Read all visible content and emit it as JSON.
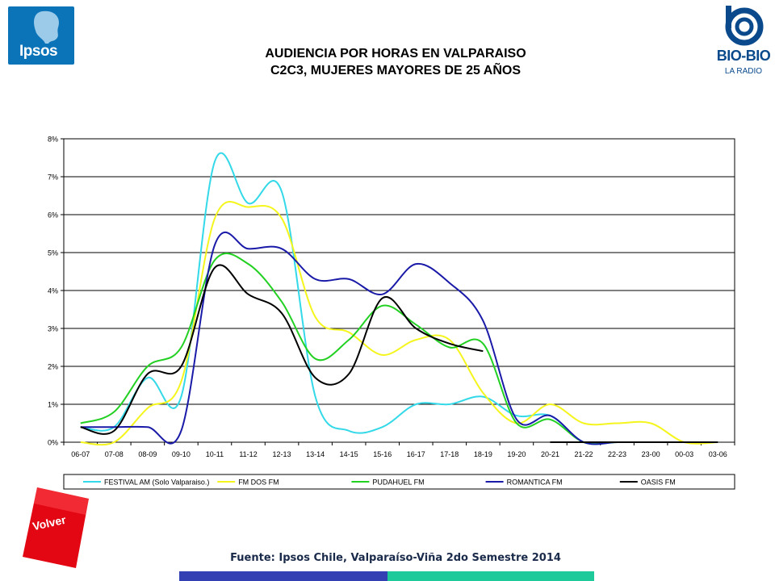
{
  "title_line1": "AUDIENCIA POR HORAS EN VALPARAISO",
  "title_line2": "C2C3, MUJERES MAYORES DE 25 AÑOS",
  "logo_left": "Ipsos",
  "logo_right": "BIO-BIO",
  "logo_right_sub": "LA RADIO",
  "button_label": "Volver",
  "source": "Fuente: Ipsos Chile, Valparaíso-Viña 2do Semestre 2014",
  "colors": {
    "accent_blue": "#3340b4",
    "accent_green": "#1ec99a",
    "button_red": "#e30613",
    "ipsos_blue": "#0b74b9"
  },
  "chart_data": {
    "type": "line",
    "categories": [
      "06-07",
      "07-08",
      "08-09",
      "09-10",
      "10-11",
      "11-12",
      "12-13",
      "13-14",
      "14-15",
      "15-16",
      "16-17",
      "17-18",
      "18-19",
      "19-20",
      "20-21",
      "21-22",
      "22-23",
      "23-00",
      "00-03",
      "03-06"
    ],
    "ylim": [
      0,
      8
    ],
    "yticks": [
      "0%",
      "1%",
      "2%",
      "3%",
      "4%",
      "5%",
      "6%",
      "7%",
      "8%"
    ],
    "grid": true,
    "legend_position": "bottom",
    "series": [
      {
        "name": "FESTIVAL AM (Solo Valparaiso.)",
        "color": "#33d9e8",
        "values": [
          0.4,
          0.4,
          1.7,
          1.2,
          7.4,
          6.3,
          6.6,
          1.2,
          0.3,
          0.4,
          1.0,
          1.0,
          1.2,
          0.7,
          0.7,
          0.0,
          0.0,
          0.0,
          0.0,
          0.0
        ]
      },
      {
        "name": "FM DOS FM",
        "color": "#f5f51e",
        "values": [
          0.0,
          0.0,
          0.9,
          1.6,
          5.9,
          6.2,
          5.9,
          3.3,
          2.9,
          2.3,
          2.7,
          2.7,
          1.3,
          0.5,
          1.0,
          0.5,
          0.5,
          0.5,
          0.0,
          0.0
        ]
      },
      {
        "name": "PUDAHUEL FM",
        "color": "#22d022",
        "values": [
          0.5,
          0.8,
          2.0,
          2.5,
          4.8,
          4.7,
          3.7,
          2.2,
          2.7,
          3.6,
          3.1,
          2.5,
          2.6,
          0.5,
          0.6,
          0.0,
          0.0,
          0.0,
          0.0,
          0.0
        ]
      },
      {
        "name": "ROMANTICA FM",
        "color": "#1a1aa8",
        "values": [
          0.4,
          0.4,
          0.4,
          0.3,
          5.2,
          5.1,
          5.1,
          4.3,
          4.3,
          3.9,
          4.7,
          4.2,
          3.2,
          0.6,
          0.7,
          0.0,
          0.0,
          0.0,
          0.0,
          0.0
        ]
      },
      {
        "name": "OASIS FM",
        "color": "#000000",
        "values": [
          0.4,
          0.3,
          1.8,
          2.0,
          4.6,
          3.9,
          3.4,
          1.7,
          1.8,
          3.8,
          3.0,
          2.6,
          2.4,
          null,
          0.0,
          0.0,
          0.0,
          0.0,
          0.0,
          0.0
        ]
      }
    ]
  }
}
